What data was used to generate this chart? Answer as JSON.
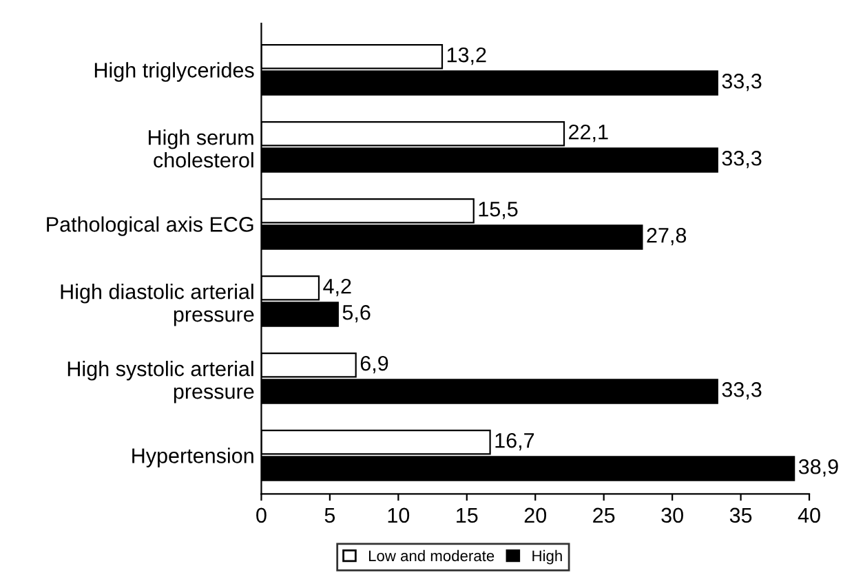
{
  "chart_data": {
    "type": "bar",
    "orientation": "horizontal",
    "categories": [
      "High triglycerides",
      "High serum\ncholesterol",
      "Pathological axis ECG",
      "High diastolic arterial\npressure",
      "High systolic arterial\npressure",
      "Hypertension"
    ],
    "series": [
      {
        "name": "Low and moderate",
        "color": "#ffffff",
        "values": [
          13.2,
          22.1,
          15.5,
          4.2,
          6.9,
          16.7
        ],
        "value_labels": [
          "13,2",
          "22,1",
          "15,5",
          "4,2",
          "6,9",
          "16,7"
        ]
      },
      {
        "name": "High",
        "color": "#000000",
        "values": [
          33.3,
          33.3,
          27.8,
          5.6,
          33.3,
          38.9
        ],
        "value_labels": [
          "33,3",
          "33,3",
          "27,8",
          "5,6",
          "33,3",
          "38,9"
        ]
      }
    ],
    "xlim": [
      0,
      40
    ],
    "xticks": [
      0,
      5,
      10,
      15,
      20,
      25,
      30,
      35,
      40
    ],
    "legend": "bottom",
    "grid": false
  }
}
